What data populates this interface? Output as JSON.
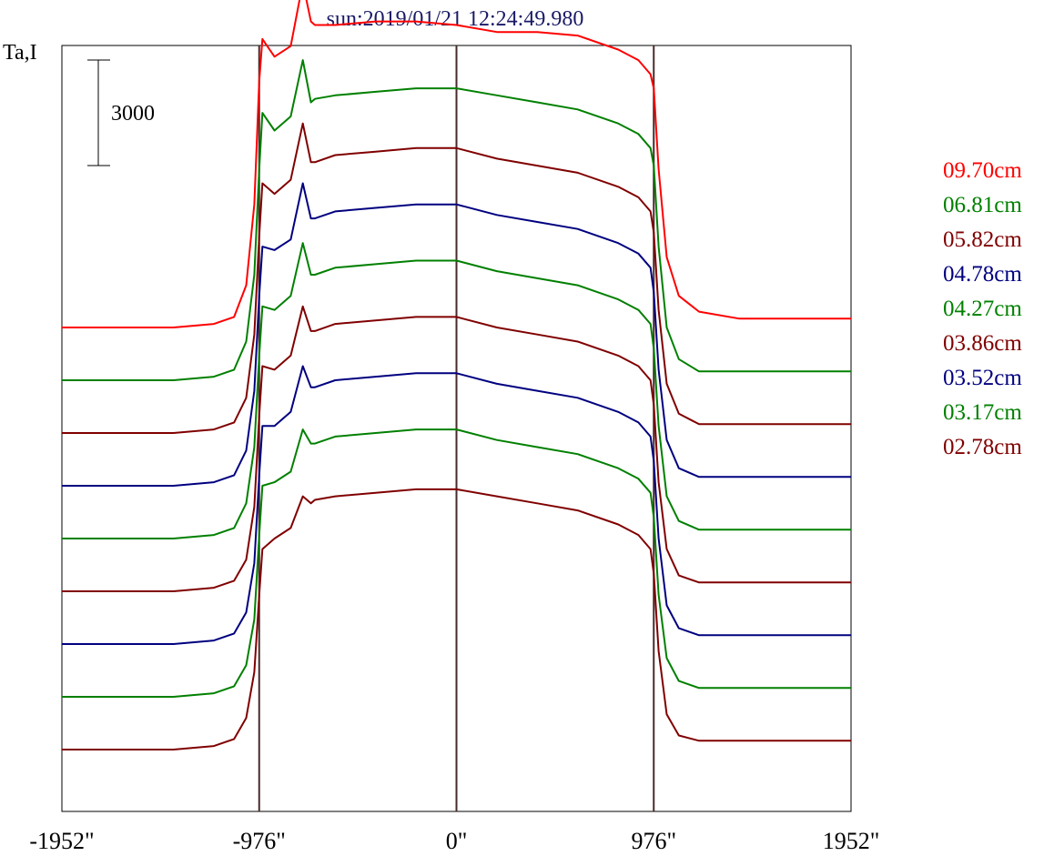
{
  "chart_data": {
    "type": "line",
    "title": "sun:2019/01/21 12:24:49.980",
    "ylabel": "Ta,I",
    "xlim": [
      -1952,
      1952
    ],
    "x_ticks": [
      {
        "value": -1952,
        "label": "-1952\""
      },
      {
        "value": -976,
        "label": "-976\""
      },
      {
        "value": 0,
        "label": "0\""
      },
      {
        "value": 976,
        "label": "976\""
      },
      {
        "value": 1952,
        "label": "1952\""
      }
    ],
    "vertical_lines": [
      -976,
      0,
      976
    ],
    "scale_bar": {
      "value": 3000,
      "label": "3000"
    },
    "grid": false,
    "legend_position": "right",
    "x": [
      -1952,
      -1400,
      -1200,
      -1100,
      -1040,
      -1000,
      -976,
      -960,
      -900,
      -820,
      -760,
      -720,
      -700,
      -600,
      -400,
      -200,
      0,
      200,
      400,
      600,
      800,
      900,
      960,
      976,
      1000,
      1040,
      1100,
      1200,
      1400,
      1952
    ],
    "series": [
      {
        "name": "09.70cm",
        "color": "#ff0000",
        "offset": 0,
        "values": [
          0,
          0,
          100,
          300,
          1200,
          3500,
          7000,
          8200,
          7700,
          8000,
          9800,
          8700,
          8600,
          8600,
          8700,
          8700,
          8600,
          8400,
          8400,
          8300,
          7900,
          7600,
          7200,
          6800,
          4500,
          2000,
          900,
          450,
          250,
          250
        ]
      },
      {
        "name": "06.81cm",
        "color": "#008000",
        "offset": -1,
        "values": [
          0,
          0,
          100,
          300,
          1100,
          3000,
          6000,
          7600,
          7100,
          7500,
          9100,
          7900,
          8000,
          8100,
          8200,
          8300,
          8300,
          8100,
          7900,
          7700,
          7300,
          7000,
          6600,
          6100,
          3800,
          1500,
          600,
          250,
          250,
          250
        ]
      },
      {
        "name": "05.82cm",
        "color": "#800000",
        "offset": -2,
        "values": [
          0,
          0,
          100,
          300,
          1000,
          2800,
          5600,
          7100,
          6800,
          7200,
          8800,
          7700,
          7700,
          7900,
          8000,
          8100,
          8100,
          7800,
          7600,
          7400,
          7000,
          6700,
          6300,
          5700,
          3500,
          1400,
          550,
          250,
          250,
          250
        ]
      },
      {
        "name": "04.78cm",
        "color": "#000080",
        "offset": -3,
        "values": [
          0,
          0,
          100,
          300,
          1000,
          2700,
          5400,
          6800,
          6700,
          7000,
          8600,
          7600,
          7600,
          7800,
          7900,
          8000,
          8000,
          7700,
          7500,
          7300,
          6900,
          6600,
          6200,
          5500,
          3300,
          1300,
          500,
          250,
          250,
          250
        ]
      },
      {
        "name": "04.27cm",
        "color": "#008000",
        "offset": -4,
        "values": [
          0,
          0,
          100,
          300,
          1000,
          2600,
          5200,
          6600,
          6500,
          6900,
          8400,
          7500,
          7500,
          7700,
          7800,
          7900,
          7900,
          7600,
          7400,
          7200,
          6800,
          6500,
          6100,
          5400,
          3200,
          1200,
          500,
          250,
          250,
          250
        ]
      },
      {
        "name": "03.86cm",
        "color": "#800000",
        "offset": -5,
        "values": [
          0,
          0,
          100,
          300,
          900,
          2400,
          5000,
          6400,
          6300,
          6700,
          8100,
          7400,
          7400,
          7600,
          7700,
          7800,
          7800,
          7500,
          7300,
          7100,
          6700,
          6400,
          6000,
          5300,
          3100,
          1200,
          450,
          250,
          250,
          250
        ]
      },
      {
        "name": "03.52cm",
        "color": "#000080",
        "offset": -6,
        "values": [
          0,
          0,
          100,
          300,
          900,
          2300,
          4800,
          6200,
          6200,
          6600,
          7900,
          7300,
          7300,
          7500,
          7600,
          7700,
          7700,
          7400,
          7200,
          7000,
          6600,
          6300,
          5900,
          5200,
          3000,
          1100,
          450,
          250,
          250,
          250
        ]
      },
      {
        "name": "03.17cm",
        "color": "#008000",
        "offset": -7,
        "values": [
          0,
          0,
          100,
          300,
          900,
          2200,
          4600,
          6000,
          6100,
          6400,
          7600,
          7200,
          7200,
          7400,
          7500,
          7600,
          7600,
          7300,
          7100,
          6900,
          6500,
          6200,
          5800,
          5100,
          2900,
          1100,
          450,
          250,
          250,
          250
        ]
      },
      {
        "name": "02.78cm",
        "color": "#800000",
        "offset": -8,
        "values": [
          0,
          0,
          100,
          300,
          900,
          2200,
          4400,
          5700,
          6000,
          6300,
          7200,
          7000,
          7100,
          7200,
          7300,
          7400,
          7400,
          7200,
          7000,
          6800,
          6400,
          6100,
          5700,
          5000,
          2800,
          1000,
          400,
          250,
          250,
          250
        ]
      }
    ]
  }
}
